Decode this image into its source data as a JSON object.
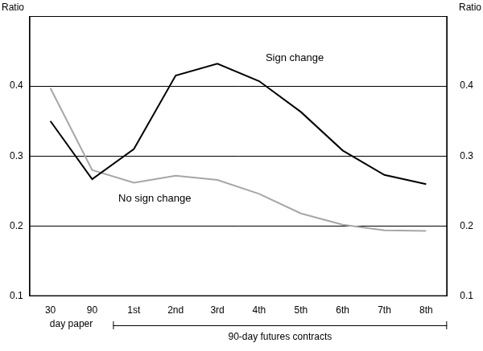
{
  "chart_data": {
    "type": "line",
    "y_label": "Ratio",
    "y2_label": "Ratio",
    "categories": [
      "30",
      "90",
      "1st",
      "2nd",
      "3rd",
      "4th",
      "5th",
      "6th",
      "7th",
      "8th"
    ],
    "category_groups": [
      {
        "label": "day paper",
        "categories": [
          "30",
          "90"
        ]
      },
      {
        "label": "90-day futures contracts",
        "categories": [
          "1st",
          "2nd",
          "3rd",
          "4th",
          "5th",
          "6th",
          "7th",
          "8th"
        ]
      }
    ],
    "series": [
      {
        "name": "Sign change",
        "color": "#000000",
        "values": [
          0.35,
          0.267,
          0.31,
          0.415,
          0.432,
          0.407,
          0.363,
          0.308,
          0.273,
          0.26
        ]
      },
      {
        "name": "No sign change",
        "color": "#a6a6a6",
        "values": [
          0.397,
          0.28,
          0.262,
          0.272,
          0.266,
          0.246,
          0.218,
          0.202,
          0.194,
          0.193
        ]
      }
    ],
    "ylim": [
      0.1,
      0.5
    ],
    "yticks": [
      0.1,
      0.2,
      0.3,
      0.4
    ],
    "y2lim": [
      0.1,
      0.5
    ],
    "y2ticks": [
      0.1,
      0.2,
      0.3,
      0.4
    ],
    "grid": true,
    "marker": "none",
    "line_style": "solid"
  }
}
